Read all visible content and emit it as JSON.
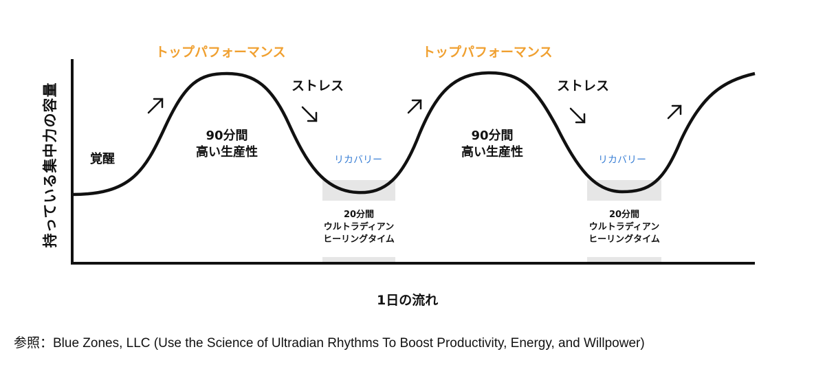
{
  "diagram": {
    "y_axis_label": "持っている集中力の容量",
    "x_axis_label": "1日の流れ",
    "top_performance_labels": [
      "トップパフォーマンス",
      "トップパフォーマンス"
    ],
    "stress_labels": [
      "ストレス",
      "ストレス"
    ],
    "awakening_label": "覚醒",
    "productivity_labels": [
      {
        "line1": "90分間",
        "line2": "高い生産性"
      },
      {
        "line1": "90分間",
        "line2": "高い生産性"
      }
    ],
    "recovery_labels": [
      "リカバリー",
      "リカバリー"
    ],
    "healing_labels": [
      {
        "line1": "20分間",
        "line2": "ウルトラディアン",
        "line3": "ヒーリングタイム"
      },
      {
        "line1": "20分間",
        "line2": "ウルトラディアン",
        "line3": "ヒーリングタイム"
      }
    ],
    "arrow_icons": [
      "arrow-up-right-icon",
      "arrow-down-right-icon",
      "arrow-up-right-icon",
      "arrow-down-right-icon",
      "arrow-up-right-icon"
    ],
    "colors": {
      "top_performance": "#f0a030",
      "recovery": "#3a7fd5",
      "shade": "#e6e6e6",
      "curve": "#111111"
    }
  },
  "source_note": "参照：Blue Zones, LLC (Use the Science of Ultradian Rhythms To Boost Productivity, Energy, and Willpower)"
}
